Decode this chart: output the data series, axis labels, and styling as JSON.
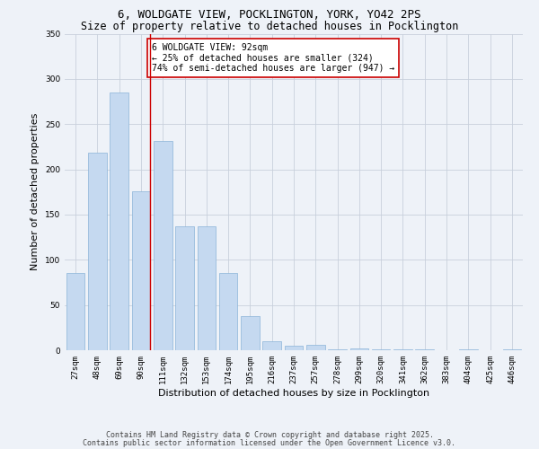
{
  "title_line1": "6, WOLDGATE VIEW, POCKLINGTON, YORK, YO42 2PS",
  "title_line2": "Size of property relative to detached houses in Pocklington",
  "xlabel": "Distribution of detached houses by size in Pocklington",
  "ylabel": "Number of detached properties",
  "categories": [
    "27sqm",
    "48sqm",
    "69sqm",
    "90sqm",
    "111sqm",
    "132sqm",
    "153sqm",
    "174sqm",
    "195sqm",
    "216sqm",
    "237sqm",
    "257sqm",
    "278sqm",
    "299sqm",
    "320sqm",
    "341sqm",
    "362sqm",
    "383sqm",
    "404sqm",
    "425sqm",
    "446sqm"
  ],
  "values": [
    85,
    218,
    285,
    176,
    231,
    137,
    137,
    85,
    38,
    10,
    5,
    6,
    1,
    2,
    1,
    1,
    1,
    0,
    1,
    0,
    1
  ],
  "bar_color": "#c5d9f0",
  "bar_edge_color": "#8ab4d8",
  "grid_color": "#c8d0dc",
  "background_color": "#eef2f8",
  "annotation_text": "6 WOLDGATE VIEW: 92sqm\n← 25% of detached houses are smaller (324)\n74% of semi-detached houses are larger (947) →",
  "annotation_box_color": "#ffffff",
  "annotation_box_edge": "#cc0000",
  "red_line_x": "90sqm",
  "red_line_color": "#cc0000",
  "ylim": [
    0,
    350
  ],
  "yticks": [
    0,
    50,
    100,
    150,
    200,
    250,
    300,
    350
  ],
  "footer_line1": "Contains HM Land Registry data © Crown copyright and database right 2025.",
  "footer_line2": "Contains public sector information licensed under the Open Government Licence v3.0.",
  "title_fontsize": 9,
  "subtitle_fontsize": 8.5,
  "axis_label_fontsize": 8,
  "tick_fontsize": 6.5,
  "annotation_fontsize": 7,
  "footer_fontsize": 6
}
